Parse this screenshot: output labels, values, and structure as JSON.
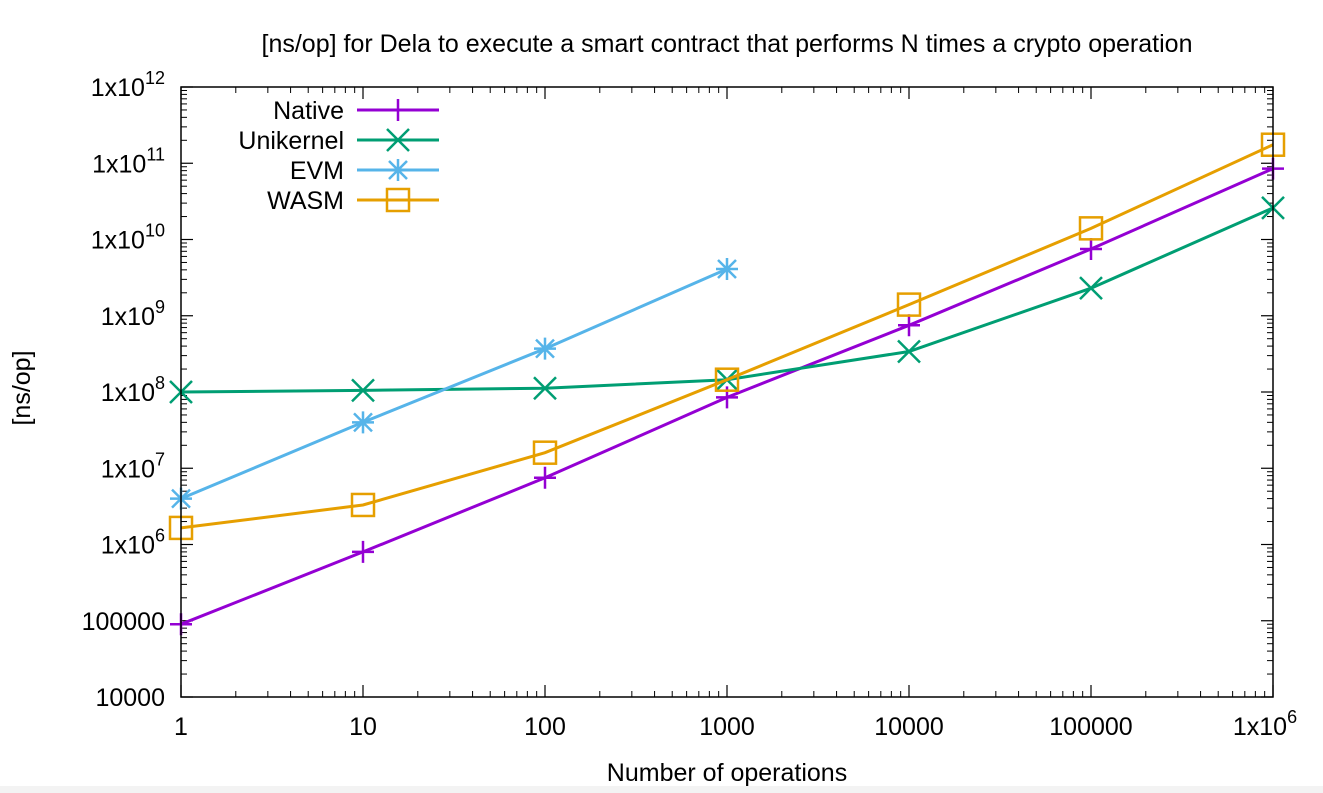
{
  "chart_data": {
    "type": "line",
    "title": "[ns/op] for Dela to execute a smart contract that performs N times a crypto operation",
    "xlabel": "Number of operations",
    "ylabel": "[ns/op]",
    "xscale": "log",
    "yscale": "log",
    "xlim": [
      1,
      1000000
    ],
    "ylim": [
      10000,
      1000000000000
    ],
    "grid": false,
    "legend_position": "top-left",
    "x_ticks": [
      {
        "value": 1,
        "label": "1"
      },
      {
        "value": 10,
        "label": "10"
      },
      {
        "value": 100,
        "label": "100"
      },
      {
        "value": 1000,
        "label": "1000"
      },
      {
        "value": 10000,
        "label": "10000"
      },
      {
        "value": 100000,
        "label": "100000"
      },
      {
        "value": 1000000,
        "label": "1x10",
        "sup": "6"
      }
    ],
    "y_ticks": [
      {
        "value": 10000,
        "label": "10000"
      },
      {
        "value": 100000,
        "label": "100000"
      },
      {
        "value": 1000000,
        "label": "1x10",
        "sup": "6"
      },
      {
        "value": 10000000,
        "label": "1x10",
        "sup": "7"
      },
      {
        "value": 100000000,
        "label": "1x10",
        "sup": "8"
      },
      {
        "value": 1000000000,
        "label": "1x10",
        "sup": "9"
      },
      {
        "value": 10000000000,
        "label": "1x10",
        "sup": "10"
      },
      {
        "value": 100000000000,
        "label": "1x10",
        "sup": "11"
      },
      {
        "value": 1000000000000,
        "label": "1x10",
        "sup": "12"
      }
    ],
    "series": [
      {
        "name": "Native",
        "color": "#9400d3",
        "marker": "plus",
        "x": [
          1,
          10,
          100,
          1000,
          10000,
          100000,
          1000000
        ],
        "y": [
          90000,
          800000,
          7500000,
          85000000,
          750000000,
          7500000000,
          85000000000
        ]
      },
      {
        "name": "Unikernel",
        "color": "#009e73",
        "marker": "cross",
        "x": [
          1,
          10,
          100,
          1000,
          10000,
          100000,
          1000000
        ],
        "y": [
          100000000,
          105000000,
          112000000,
          145000000,
          340000000,
          2300000000,
          26000000000
        ]
      },
      {
        "name": "EVM",
        "color": "#56b4e9",
        "marker": "star",
        "x": [
          1,
          10,
          100,
          1000
        ],
        "y": [
          4000000,
          40000000,
          370000000,
          4100000000
        ]
      },
      {
        "name": "WASM",
        "color": "#e69f00",
        "marker": "square",
        "x": [
          1,
          10,
          100,
          1000,
          10000,
          100000,
          1000000
        ],
        "y": [
          1650000,
          3300000,
          16000000,
          145000000,
          1400000000,
          14000000000,
          175000000000
        ]
      }
    ]
  }
}
